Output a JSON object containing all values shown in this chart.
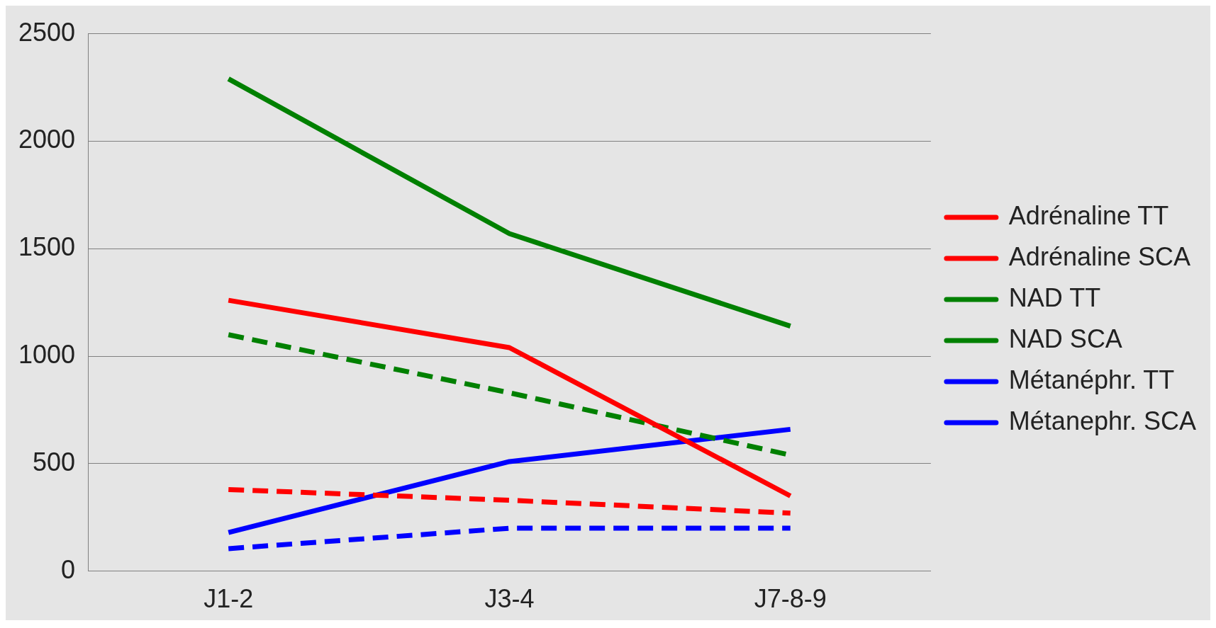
{
  "chart_data": {
    "type": "line",
    "categories": [
      "J1-2",
      "J3-4",
      "J7-8-9"
    ],
    "series": [
      {
        "name": "Adrénaline TT",
        "color": "#ff0000",
        "line_style": "solid",
        "values": [
          1260,
          1040,
          350
        ]
      },
      {
        "name": "Adrénaline SCA",
        "color": "#ff0000",
        "line_style": "dashed",
        "values": [
          380,
          330,
          270
        ]
      },
      {
        "name": "NAD TT",
        "color": "#008000",
        "line_style": "solid",
        "values": [
          2290,
          1570,
          1140
        ]
      },
      {
        "name": "NAD SCA",
        "color": "#008000",
        "line_style": "dashed",
        "values": [
          1100,
          830,
          540
        ]
      },
      {
        "name": "Métanéphr. TT",
        "color": "#0000ff",
        "line_style": "solid",
        "values": [
          180,
          510,
          660
        ]
      },
      {
        "name": "Métanephr. SCA",
        "color": "#0000ff",
        "line_style": "dashed",
        "values": [
          105,
          200,
          200
        ]
      }
    ],
    "ylim": [
      0,
      2500
    ],
    "yticks": [
      0,
      500,
      1000,
      1500,
      2000,
      2500
    ],
    "grid": "y",
    "legend": "right",
    "marker": "none"
  }
}
